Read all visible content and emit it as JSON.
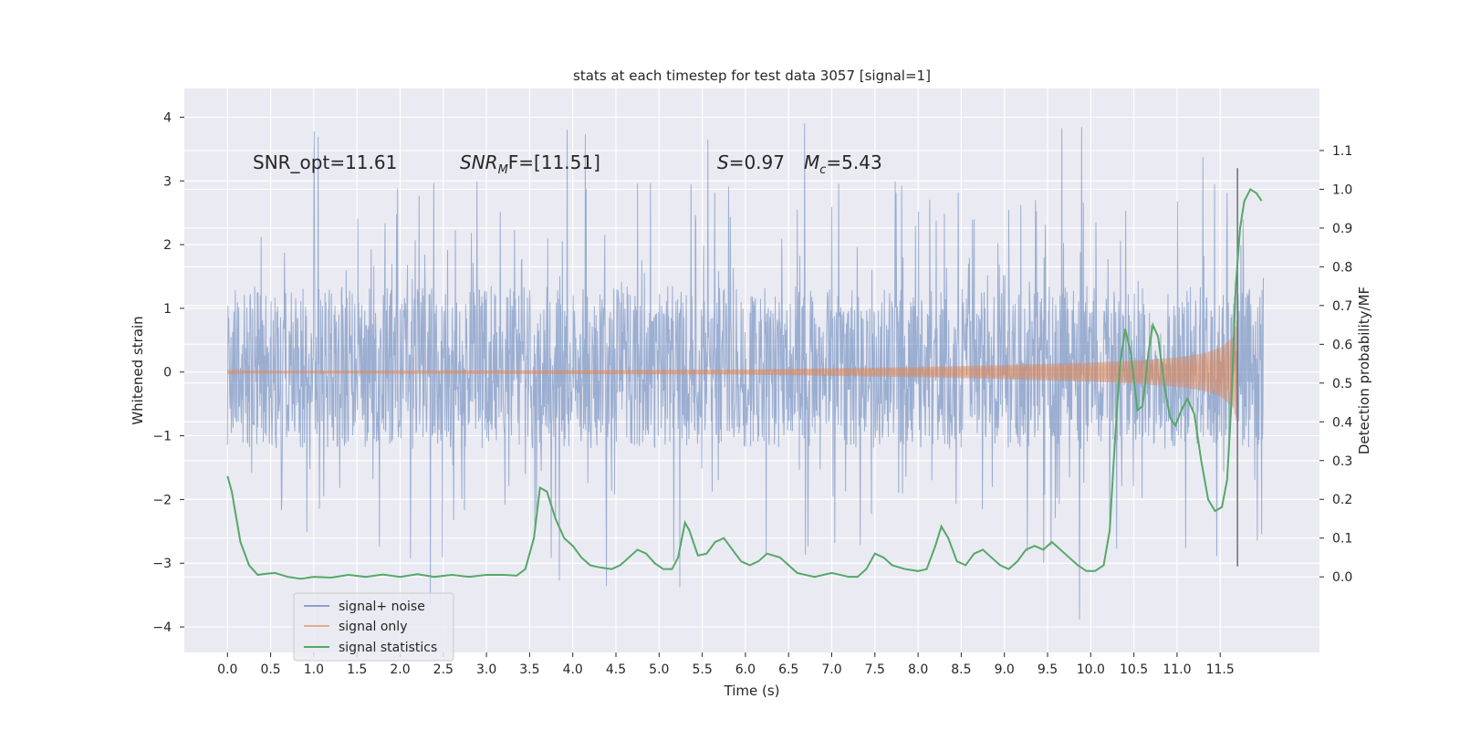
{
  "chart_data": {
    "type": "line",
    "title": "stats at each timestep for test data 3057 [signal=1]",
    "xlabel": "Time (s)",
    "ylabel_left": "Whitened strain",
    "ylabel_right": "Detection probability/MF",
    "xlim": [
      -0.5,
      12.65
    ],
    "ylim_left": [
      -4.4,
      4.45
    ],
    "ylim_right": [
      -0.195,
      1.26
    ],
    "x_ticks": [
      0.0,
      0.5,
      1.0,
      1.5,
      2.0,
      2.5,
      3.0,
      3.5,
      4.0,
      4.5,
      5.0,
      5.5,
      6.0,
      6.5,
      7.0,
      7.5,
      8.0,
      8.5,
      9.0,
      9.5,
      10.0,
      10.5,
      11.0,
      11.5
    ],
    "x_tick_labels": [
      "0.0",
      "0.5",
      "1.0",
      "1.5",
      "2.0",
      "2.5",
      "3.0",
      "3.5",
      "4.0",
      "4.5",
      "5.0",
      "5.5",
      "6.0",
      "6.5",
      "7.0",
      "7.5",
      "8.0",
      "8.5",
      "9.0",
      "9.5",
      "10.0",
      "10.5",
      "11.0",
      "11.5"
    ],
    "y_left_ticks": [
      -4,
      -3,
      -2,
      -1,
      0,
      1,
      2,
      3,
      4
    ],
    "y_left_tick_labels": [
      "−4",
      "−3",
      "−2",
      "−1",
      "0",
      "1",
      "2",
      "3",
      "4"
    ],
    "y_right_ticks": [
      0.0,
      0.1,
      0.2,
      0.3,
      0.4,
      0.5,
      0.6,
      0.7,
      0.8,
      0.9,
      1.0,
      1.1
    ],
    "y_right_tick_labels": [
      "0.0",
      "0.1",
      "0.2",
      "0.3",
      "0.4",
      "0.5",
      "0.6",
      "0.7",
      "0.8",
      "0.9",
      "1.0",
      "1.1"
    ],
    "grid": true,
    "legend_position": "lower-left",
    "annotations": {
      "snr_opt": "SNR_opt=11.61",
      "snr_mf_base": "SNR",
      "snr_mf_sub": "M",
      "snr_mf_rest": "F=[11.51]",
      "s_sym": "S",
      "s_value": "=0.97",
      "mc_base": "M",
      "mc_sub": "c",
      "mc_value": "=5.43"
    },
    "vline_x": 11.7,
    "vline_ylim": [
      -3.05,
      3.2
    ],
    "series": [
      {
        "name": "signal+ noise",
        "color": "#4c72b0",
        "axis": "left",
        "t_range": [
          0.0,
          12.0
        ],
        "envelope": {
          "core_high": 1.35,
          "core_low": -1.2,
          "peak_high": 4.1,
          "peak_low": -3.9
        }
      },
      {
        "name": "signal only",
        "color": "#dd8452",
        "axis": "left",
        "t_range": [
          0.0,
          11.7
        ],
        "envelope_t": [
          0.0,
          4.0,
          6.0,
          7.0,
          8.0,
          9.0,
          10.0,
          10.5,
          11.0,
          11.3,
          11.5,
          11.65,
          11.7
        ],
        "envelope_amp": [
          0.02,
          0.03,
          0.04,
          0.06,
          0.08,
          0.11,
          0.15,
          0.18,
          0.23,
          0.29,
          0.38,
          0.55,
          0.85
        ]
      },
      {
        "name": "signal statistics",
        "color": "#55a868",
        "axis": "right",
        "x": [
          0.0,
          0.05,
          0.15,
          0.25,
          0.35,
          0.45,
          0.55,
          0.7,
          0.85,
          1.0,
          1.2,
          1.4,
          1.6,
          1.8,
          2.0,
          2.2,
          2.4,
          2.6,
          2.8,
          3.0,
          3.2,
          3.35,
          3.45,
          3.55,
          3.62,
          3.7,
          3.8,
          3.9,
          4.0,
          4.1,
          4.2,
          4.3,
          4.45,
          4.55,
          4.65,
          4.75,
          4.85,
          4.95,
          5.05,
          5.15,
          5.22,
          5.3,
          5.35,
          5.45,
          5.55,
          5.65,
          5.75,
          5.85,
          5.95,
          6.05,
          6.15,
          6.25,
          6.4,
          6.6,
          6.8,
          7.0,
          7.2,
          7.3,
          7.4,
          7.5,
          7.6,
          7.7,
          7.85,
          8.0,
          8.1,
          8.2,
          8.27,
          8.35,
          8.45,
          8.55,
          8.65,
          8.75,
          8.85,
          8.95,
          9.05,
          9.15,
          9.25,
          9.35,
          9.45,
          9.55,
          9.65,
          9.75,
          9.85,
          9.95,
          10.05,
          10.15,
          10.22,
          10.28,
          10.34,
          10.4,
          10.47,
          10.54,
          10.6,
          10.67,
          10.72,
          10.78,
          10.85,
          10.92,
          10.98,
          11.05,
          11.12,
          11.2,
          11.28,
          11.36,
          11.44,
          11.52,
          11.58,
          11.63,
          11.68,
          11.73,
          11.78,
          11.85,
          11.92,
          11.98
        ],
        "values": [
          0.26,
          0.22,
          0.09,
          0.03,
          0.005,
          0.008,
          0.01,
          0.0,
          -0.005,
          0.0,
          -0.002,
          0.005,
          0.0,
          0.006,
          0.0,
          0.007,
          0.0,
          0.005,
          0.0,
          0.005,
          0.005,
          0.003,
          0.02,
          0.1,
          0.23,
          0.22,
          0.15,
          0.1,
          0.08,
          0.05,
          0.03,
          0.025,
          0.02,
          0.03,
          0.05,
          0.07,
          0.06,
          0.035,
          0.02,
          0.02,
          0.05,
          0.14,
          0.12,
          0.055,
          0.06,
          0.09,
          0.1,
          0.07,
          0.04,
          0.03,
          0.04,
          0.06,
          0.05,
          0.01,
          0.0,
          0.01,
          0.0,
          0.0,
          0.02,
          0.06,
          0.05,
          0.03,
          0.02,
          0.015,
          0.02,
          0.08,
          0.13,
          0.1,
          0.04,
          0.03,
          0.06,
          0.07,
          0.05,
          0.03,
          0.02,
          0.04,
          0.07,
          0.08,
          0.07,
          0.09,
          0.07,
          0.05,
          0.03,
          0.015,
          0.015,
          0.03,
          0.12,
          0.35,
          0.55,
          0.64,
          0.57,
          0.43,
          0.44,
          0.58,
          0.65,
          0.62,
          0.5,
          0.41,
          0.39,
          0.43,
          0.46,
          0.42,
          0.3,
          0.2,
          0.17,
          0.18,
          0.25,
          0.45,
          0.75,
          0.9,
          0.97,
          1.0,
          0.99,
          0.97
        ]
      }
    ]
  }
}
